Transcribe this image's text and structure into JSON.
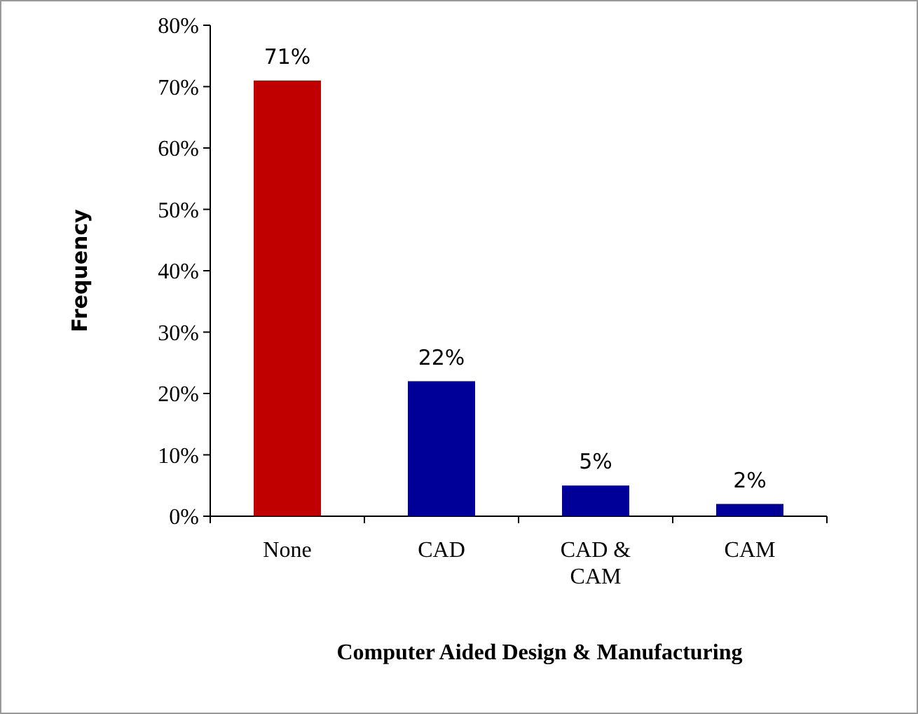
{
  "chart_data": {
    "type": "bar",
    "xlabel": "Computer Aided Design & Manufacturing",
    "ylabel": "Frequency",
    "categories": [
      "None",
      "CAD",
      "CAD & CAM",
      "CAM"
    ],
    "values": [
      71,
      22,
      5,
      2
    ],
    "colors": [
      "#c00000",
      "#000099",
      "#000099",
      "#000099"
    ],
    "value_labels": [
      "71%",
      "22%",
      "5%",
      "2%"
    ],
    "ylim": [
      0,
      80
    ],
    "yticks": [
      {
        "value": 0,
        "label": "0%"
      },
      {
        "value": 10,
        "label": "10%"
      },
      {
        "value": 20,
        "label": "20%"
      },
      {
        "value": 30,
        "label": "30%"
      },
      {
        "value": 40,
        "label": "40%"
      },
      {
        "value": 50,
        "label": "50%"
      },
      {
        "value": 60,
        "label": "60%"
      },
      {
        "value": 70,
        "label": "70%"
      },
      {
        "value": 80,
        "label": "80%"
      }
    ],
    "grid": false
  }
}
